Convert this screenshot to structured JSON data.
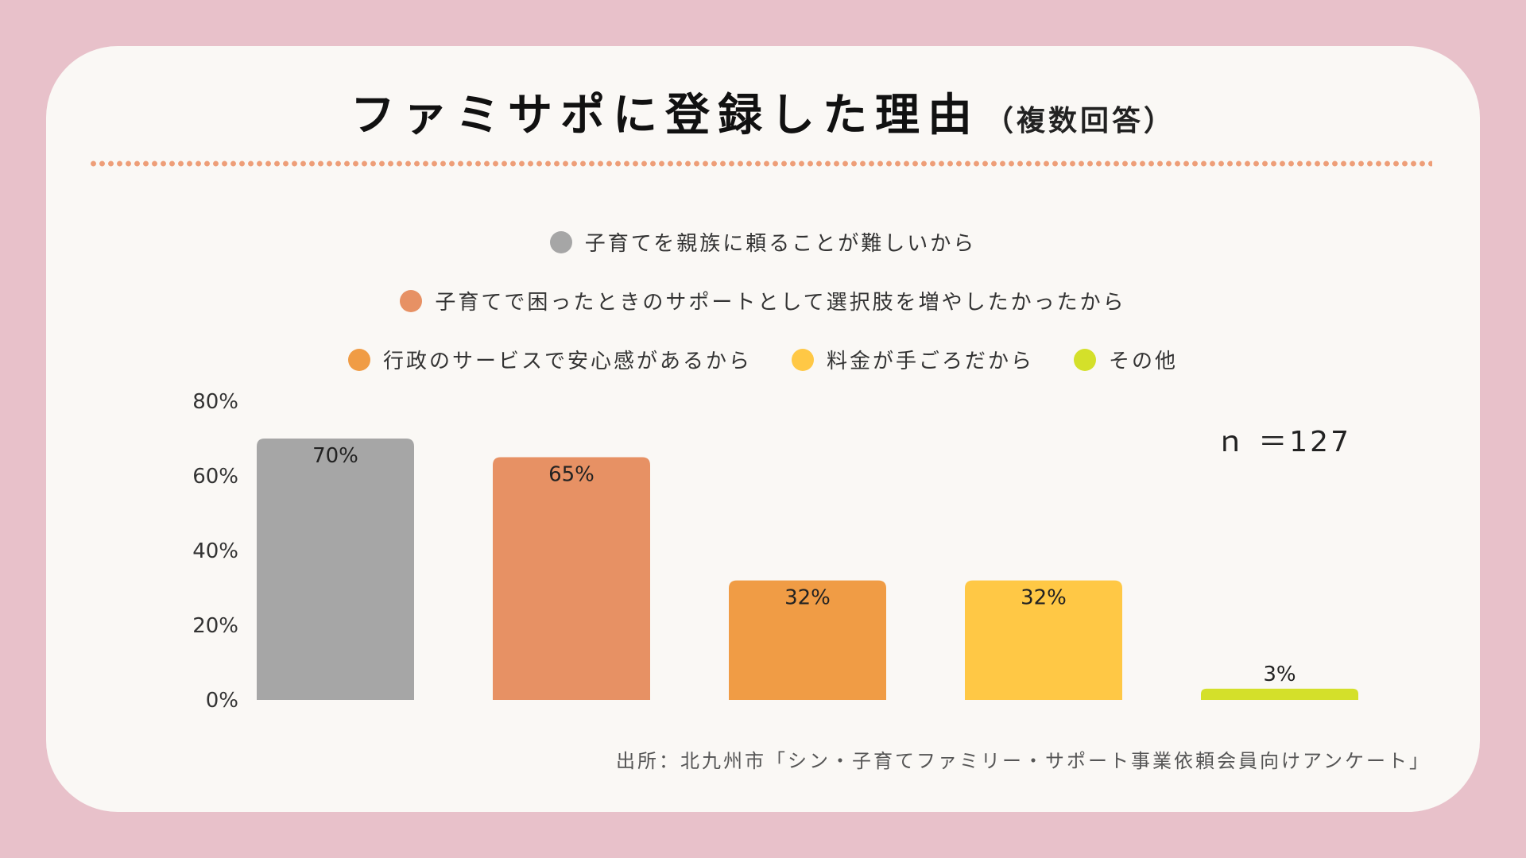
{
  "title": "ファミサポに登録した理由",
  "subtitle": "（複数回答）",
  "n_label": "ｎ ＝127",
  "source": "出所：北九州市「シン・子育てファミリー・サポート事業依頼会員向けアンケート」",
  "chart_data": {
    "type": "bar",
    "categories": [
      "子育てを親族に頼ることが難しいから",
      "子育てで困ったときのサポートとして選択肢を増やしたかったから",
      "行政のサービスで安心感があるから",
      "料金が手ごろだから",
      "その他"
    ],
    "values": [
      70,
      65,
      32,
      32,
      3
    ],
    "value_labels": [
      "70%",
      "65%",
      "32%",
      "32%",
      "3%"
    ],
    "colors": [
      "#a6a6a6",
      "#e79164",
      "#f09c45",
      "#ffc845",
      "#d4e02a"
    ],
    "ylim": [
      0,
      80
    ],
    "yticks": [
      0,
      20,
      40,
      60,
      80
    ],
    "ytick_labels": [
      "0%",
      "20%",
      "40%",
      "60%",
      "80%"
    ],
    "legend_placement": "top",
    "grid": false
  }
}
